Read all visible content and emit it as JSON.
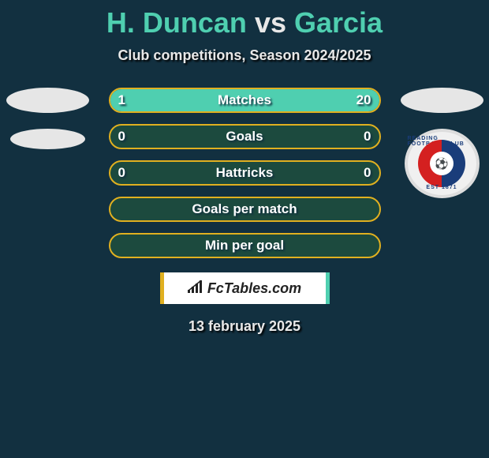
{
  "title": {
    "player1": "H. Duncan",
    "vs": "vs",
    "player2": "Garcia",
    "color_player": "#4fcfb0",
    "color_vs": "#e8e8e8"
  },
  "subtitle": "Club competitions, Season 2024/2025",
  "colors": {
    "background": "#123040",
    "bar_border": "#e0b020",
    "bar_fill": "#4fcfb0",
    "bar_bg": "#1c4a3e",
    "text": "#e8e8e8"
  },
  "bars": [
    {
      "label": "Matches",
      "left": "1",
      "right": "20",
      "fill_left_pct": 5,
      "fill_right_pct": 95
    },
    {
      "label": "Goals",
      "left": "0",
      "right": "0",
      "fill_left_pct": 0,
      "fill_right_pct": 0
    },
    {
      "label": "Hattricks",
      "left": "0",
      "right": "0",
      "fill_left_pct": 0,
      "fill_right_pct": 0
    },
    {
      "label": "Goals per match",
      "left": "",
      "right": "",
      "fill_left_pct": 0,
      "fill_right_pct": 0
    },
    {
      "label": "Min per goal",
      "left": "",
      "right": "",
      "fill_left_pct": 0,
      "fill_right_pct": 0
    }
  ],
  "brand": {
    "icon": "signal-icon",
    "text": "FcTables.com"
  },
  "date": "13 february 2025",
  "right_club": {
    "top_text": "READING FOOTBALL CLUB",
    "bottom_text": "EST 1871",
    "center_glyph": "⚽"
  }
}
